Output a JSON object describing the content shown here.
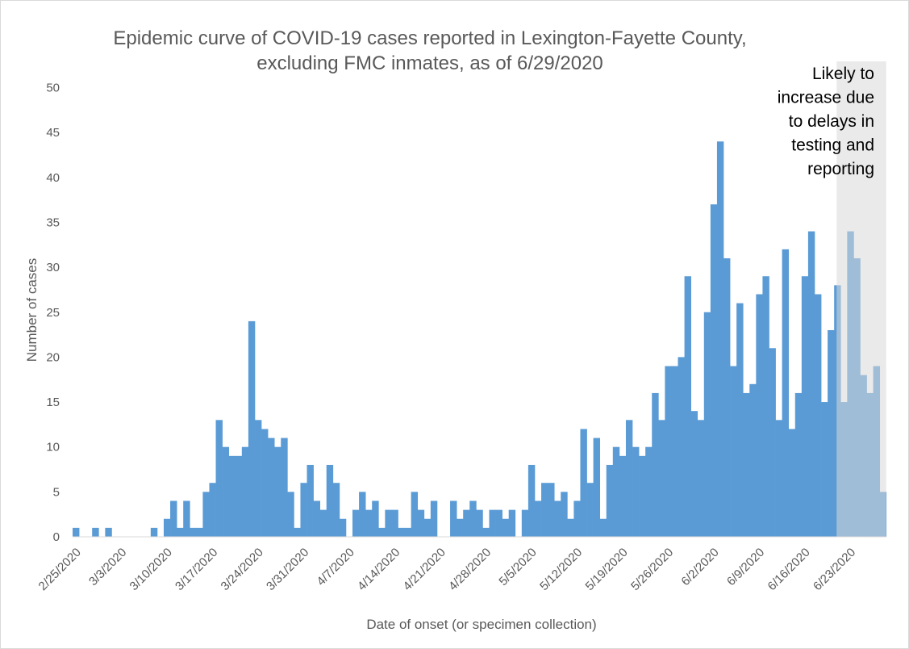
{
  "chart_data": {
    "type": "bar",
    "title_lines": [
      "Epidemic curve of COVID-19 cases reported in Lexington-Fayette County,",
      "excluding FMC inmates, as of 6/29/2020"
    ],
    "xlabel": "Date of onset (or specimen collection)",
    "ylabel": "Number of cases",
    "ylim": [
      0,
      50
    ],
    "yticks": [
      0,
      5,
      10,
      15,
      20,
      25,
      30,
      35,
      40,
      45,
      50
    ],
    "start_date": "2/25/2020",
    "xtick_labels": [
      "2/25/2020",
      "3/3/2020",
      "3/10/2020",
      "3/17/2020",
      "3/24/2020",
      "3/31/2020",
      "4/7/2020",
      "4/14/2020",
      "4/21/2020",
      "4/28/2020",
      "5/5/2020",
      "5/12/2020",
      "5/19/2020",
      "5/26/2020",
      "6/2/2020",
      "6/9/2020",
      "6/16/2020",
      "6/23/2020"
    ],
    "values": [
      1,
      0,
      0,
      1,
      0,
      1,
      0,
      0,
      0,
      0,
      0,
      0,
      1,
      0,
      2,
      4,
      1,
      4,
      1,
      1,
      5,
      6,
      13,
      10,
      9,
      9,
      10,
      24,
      13,
      12,
      11,
      10,
      11,
      5,
      1,
      6,
      8,
      4,
      3,
      8,
      6,
      2,
      0,
      3,
      5,
      3,
      4,
      1,
      3,
      3,
      1,
      1,
      5,
      3,
      2,
      4,
      0,
      0,
      4,
      2,
      3,
      4,
      3,
      1,
      3,
      3,
      2,
      3,
      0,
      3,
      8,
      4,
      6,
      6,
      4,
      5,
      2,
      4,
      12,
      6,
      11,
      2,
      8,
      10,
      9,
      13,
      10,
      9,
      10,
      16,
      13,
      19,
      19,
      20,
      29,
      14,
      13,
      25,
      37,
      44,
      31,
      19,
      26,
      16,
      17,
      27,
      29,
      21,
      13,
      32,
      12,
      16,
      29,
      34,
      27,
      15,
      23,
      28,
      15,
      34,
      31,
      18,
      16,
      19,
      5
    ],
    "bar_color": "#5b9bd5",
    "shaded_region": {
      "from_date": "6/22/2020",
      "color": "#d9d9d9",
      "label_lines": [
        "Likely to",
        "increase due",
        "to delays in",
        "testing and",
        "reporting"
      ]
    }
  }
}
